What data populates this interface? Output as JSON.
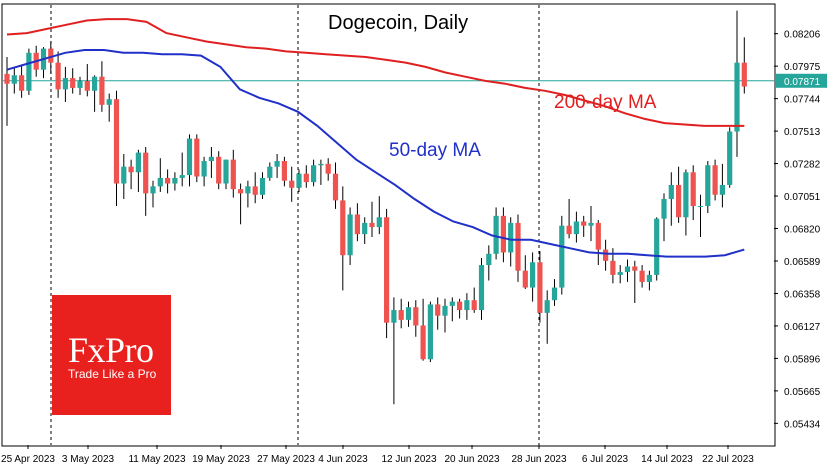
{
  "colors": {
    "background": "#ffffff",
    "axis": "#000000",
    "bull": "#26a69a",
    "bear": "#ef5350",
    "wick": "#000000",
    "ma200": "#e02020",
    "ma50": "#2030c8",
    "current_price_line": "#26a69a",
    "current_price_box": "#26a69a",
    "logo_bg": "#e8211e"
  },
  "logo": {
    "brand": "FxPro",
    "tagline": "Trade Like a Pro"
  },
  "chart_data": {
    "type": "candlestick",
    "title": "Dogecoin, Daily",
    "annotations": [
      {
        "text": "200-day MA",
        "series": "ma200"
      },
      {
        "text": "50-day MA",
        "series": "ma50"
      }
    ],
    "x_tick_labels": [
      "25 Apr 2023",
      "3 May 2023",
      "11 May 2023",
      "19 May 2023",
      "27 May 2023",
      "4 Jun 2023",
      "12 Jun 2023",
      "20 Jun 2023",
      "28 Jun 2023",
      "6 Jul 2023",
      "14 Jul 2023",
      "22 Jul 2023"
    ],
    "y_tick_labels": [
      "0.08206",
      "0.07975",
      "0.07744",
      "0.07513",
      "0.07282",
      "0.07051",
      "0.06820",
      "0.06589",
      "0.06358",
      "0.06127",
      "0.05896",
      "0.05665",
      "0.05434"
    ],
    "ylim": [
      0.0528,
      0.0841
    ],
    "current_price": "0.07871",
    "candles": [
      {
        "o": 0.0792,
        "h": 0.0804,
        "l": 0.0755,
        "c": 0.0785
      },
      {
        "o": 0.0785,
        "h": 0.0796,
        "l": 0.0778,
        "c": 0.0791
      },
      {
        "o": 0.0791,
        "h": 0.0798,
        "l": 0.0775,
        "c": 0.078
      },
      {
        "o": 0.078,
        "h": 0.081,
        "l": 0.0777,
        "c": 0.0807
      },
      {
        "o": 0.0807,
        "h": 0.0812,
        "l": 0.079,
        "c": 0.0795
      },
      {
        "o": 0.0795,
        "h": 0.0811,
        "l": 0.0789,
        "c": 0.081
      },
      {
        "o": 0.081,
        "h": 0.0815,
        "l": 0.0792,
        "c": 0.08
      },
      {
        "o": 0.08,
        "h": 0.0808,
        "l": 0.0775,
        "c": 0.0781
      },
      {
        "o": 0.0781,
        "h": 0.0797,
        "l": 0.0772,
        "c": 0.0789
      },
      {
        "o": 0.0789,
        "h": 0.0796,
        "l": 0.0778,
        "c": 0.0782
      },
      {
        "o": 0.0782,
        "h": 0.079,
        "l": 0.0777,
        "c": 0.0787
      },
      {
        "o": 0.0787,
        "h": 0.0799,
        "l": 0.0776,
        "c": 0.078
      },
      {
        "o": 0.078,
        "h": 0.0791,
        "l": 0.0765,
        "c": 0.079
      },
      {
        "o": 0.079,
        "h": 0.0801,
        "l": 0.0765,
        "c": 0.077
      },
      {
        "o": 0.077,
        "h": 0.0778,
        "l": 0.0758,
        "c": 0.0774
      },
      {
        "o": 0.0774,
        "h": 0.078,
        "l": 0.0698,
        "c": 0.0714
      },
      {
        "o": 0.0714,
        "h": 0.0735,
        "l": 0.0703,
        "c": 0.0726
      },
      {
        "o": 0.0726,
        "h": 0.0731,
        "l": 0.071,
        "c": 0.0722
      },
      {
        "o": 0.0722,
        "h": 0.0738,
        "l": 0.0708,
        "c": 0.0736
      },
      {
        "o": 0.0736,
        "h": 0.074,
        "l": 0.0691,
        "c": 0.0707
      },
      {
        "o": 0.0707,
        "h": 0.0716,
        "l": 0.0697,
        "c": 0.0712
      },
      {
        "o": 0.0712,
        "h": 0.0732,
        "l": 0.0708,
        "c": 0.0718
      },
      {
        "o": 0.0718,
        "h": 0.0724,
        "l": 0.0707,
        "c": 0.0714
      },
      {
        "o": 0.0714,
        "h": 0.0722,
        "l": 0.0709,
        "c": 0.0718
      },
      {
        "o": 0.0718,
        "h": 0.0736,
        "l": 0.0712,
        "c": 0.072
      },
      {
        "o": 0.072,
        "h": 0.0749,
        "l": 0.0712,
        "c": 0.0746
      },
      {
        "o": 0.0746,
        "h": 0.0749,
        "l": 0.0715,
        "c": 0.0719
      },
      {
        "o": 0.0719,
        "h": 0.0733,
        "l": 0.0712,
        "c": 0.073
      },
      {
        "o": 0.073,
        "h": 0.074,
        "l": 0.0718,
        "c": 0.0733
      },
      {
        "o": 0.0733,
        "h": 0.0737,
        "l": 0.071,
        "c": 0.0714
      },
      {
        "o": 0.0714,
        "h": 0.0731,
        "l": 0.071,
        "c": 0.0731
      },
      {
        "o": 0.0731,
        "h": 0.0738,
        "l": 0.0704,
        "c": 0.071
      },
      {
        "o": 0.071,
        "h": 0.0714,
        "l": 0.0685,
        "c": 0.0707
      },
      {
        "o": 0.0707,
        "h": 0.0716,
        "l": 0.0697,
        "c": 0.0712
      },
      {
        "o": 0.0712,
        "h": 0.0722,
        "l": 0.07,
        "c": 0.0706
      },
      {
        "o": 0.0706,
        "h": 0.0722,
        "l": 0.0703,
        "c": 0.0718
      },
      {
        "o": 0.0718,
        "h": 0.0729,
        "l": 0.0716,
        "c": 0.0726
      },
      {
        "o": 0.0726,
        "h": 0.0735,
        "l": 0.0718,
        "c": 0.073
      },
      {
        "o": 0.073,
        "h": 0.0733,
        "l": 0.0712,
        "c": 0.0716
      },
      {
        "o": 0.0716,
        "h": 0.0726,
        "l": 0.0701,
        "c": 0.0711
      },
      {
        "o": 0.0711,
        "h": 0.0724,
        "l": 0.0708,
        "c": 0.0721
      },
      {
        "o": 0.0721,
        "h": 0.0727,
        "l": 0.0711,
        "c": 0.0715
      },
      {
        "o": 0.0715,
        "h": 0.0731,
        "l": 0.0712,
        "c": 0.0727
      },
      {
        "o": 0.0727,
        "h": 0.0731,
        "l": 0.0713,
        "c": 0.0728
      },
      {
        "o": 0.0728,
        "h": 0.0732,
        "l": 0.0716,
        "c": 0.0721
      },
      {
        "o": 0.0721,
        "h": 0.0729,
        "l": 0.0696,
        "c": 0.0702
      },
      {
        "o": 0.0702,
        "h": 0.0712,
        "l": 0.0638,
        "c": 0.0663
      },
      {
        "o": 0.0663,
        "h": 0.0697,
        "l": 0.0656,
        "c": 0.0692
      },
      {
        "o": 0.0692,
        "h": 0.07,
        "l": 0.0673,
        "c": 0.0678
      },
      {
        "o": 0.0678,
        "h": 0.069,
        "l": 0.0671,
        "c": 0.0686
      },
      {
        "o": 0.0686,
        "h": 0.0701,
        "l": 0.0676,
        "c": 0.0683
      },
      {
        "o": 0.0683,
        "h": 0.0705,
        "l": 0.0678,
        "c": 0.069
      },
      {
        "o": 0.069,
        "h": 0.0696,
        "l": 0.0604,
        "c": 0.0615
      },
      {
        "o": 0.0615,
        "h": 0.0633,
        "l": 0.0557,
        "c": 0.0624
      },
      {
        "o": 0.0624,
        "h": 0.0632,
        "l": 0.0611,
        "c": 0.0617
      },
      {
        "o": 0.0617,
        "h": 0.063,
        "l": 0.0612,
        "c": 0.0626
      },
      {
        "o": 0.0626,
        "h": 0.0631,
        "l": 0.0605,
        "c": 0.0613
      },
      {
        "o": 0.0613,
        "h": 0.0632,
        "l": 0.0588,
        "c": 0.0589
      },
      {
        "o": 0.0589,
        "h": 0.063,
        "l": 0.0587,
        "c": 0.0628
      },
      {
        "o": 0.0628,
        "h": 0.0633,
        "l": 0.061,
        "c": 0.062
      },
      {
        "o": 0.062,
        "h": 0.0632,
        "l": 0.0608,
        "c": 0.0627
      },
      {
        "o": 0.0627,
        "h": 0.0633,
        "l": 0.0616,
        "c": 0.063
      },
      {
        "o": 0.063,
        "h": 0.0632,
        "l": 0.0618,
        "c": 0.0624
      },
      {
        "o": 0.0624,
        "h": 0.0636,
        "l": 0.0617,
        "c": 0.0631
      },
      {
        "o": 0.0631,
        "h": 0.064,
        "l": 0.0622,
        "c": 0.0624
      },
      {
        "o": 0.0624,
        "h": 0.0661,
        "l": 0.0617,
        "c": 0.0656
      },
      {
        "o": 0.0656,
        "h": 0.067,
        "l": 0.0645,
        "c": 0.0664
      },
      {
        "o": 0.0664,
        "h": 0.0697,
        "l": 0.066,
        "c": 0.0691
      },
      {
        "o": 0.0691,
        "h": 0.0697,
        "l": 0.0658,
        "c": 0.0665
      },
      {
        "o": 0.0665,
        "h": 0.069,
        "l": 0.0655,
        "c": 0.0686
      },
      {
        "o": 0.0686,
        "h": 0.0692,
        "l": 0.0644,
        "c": 0.0652
      },
      {
        "o": 0.0652,
        "h": 0.0663,
        "l": 0.0639,
        "c": 0.064
      },
      {
        "o": 0.064,
        "h": 0.0665,
        "l": 0.063,
        "c": 0.0658
      },
      {
        "o": 0.0658,
        "h": 0.0666,
        "l": 0.0615,
        "c": 0.0622
      },
      {
        "o": 0.0622,
        "h": 0.0638,
        "l": 0.06,
        "c": 0.0631
      },
      {
        "o": 0.0631,
        "h": 0.0646,
        "l": 0.0627,
        "c": 0.064
      },
      {
        "o": 0.064,
        "h": 0.0691,
        "l": 0.0635,
        "c": 0.0684
      },
      {
        "o": 0.0684,
        "h": 0.0703,
        "l": 0.0675,
        "c": 0.0678
      },
      {
        "o": 0.0678,
        "h": 0.0694,
        "l": 0.0672,
        "c": 0.0687
      },
      {
        "o": 0.0687,
        "h": 0.0691,
        "l": 0.0676,
        "c": 0.0684
      },
      {
        "o": 0.0684,
        "h": 0.0698,
        "l": 0.0673,
        "c": 0.0686
      },
      {
        "o": 0.0686,
        "h": 0.0688,
        "l": 0.0656,
        "c": 0.0667
      },
      {
        "o": 0.0667,
        "h": 0.0674,
        "l": 0.0652,
        "c": 0.0659
      },
      {
        "o": 0.0659,
        "h": 0.0668,
        "l": 0.0643,
        "c": 0.0649
      },
      {
        "o": 0.0649,
        "h": 0.0656,
        "l": 0.0643,
        "c": 0.0651
      },
      {
        "o": 0.0651,
        "h": 0.066,
        "l": 0.0644,
        "c": 0.0655
      },
      {
        "o": 0.0655,
        "h": 0.0659,
        "l": 0.0629,
        "c": 0.0652
      },
      {
        "o": 0.0652,
        "h": 0.0656,
        "l": 0.064,
        "c": 0.0644
      },
      {
        "o": 0.0644,
        "h": 0.0652,
        "l": 0.0638,
        "c": 0.0649
      },
      {
        "o": 0.0649,
        "h": 0.069,
        "l": 0.0645,
        "c": 0.0689
      },
      {
        "o": 0.0689,
        "h": 0.0707,
        "l": 0.0673,
        "c": 0.0703
      },
      {
        "o": 0.0703,
        "h": 0.0722,
        "l": 0.0684,
        "c": 0.0713
      },
      {
        "o": 0.0713,
        "h": 0.0726,
        "l": 0.0686,
        "c": 0.069
      },
      {
        "o": 0.069,
        "h": 0.0724,
        "l": 0.0677,
        "c": 0.0722
      },
      {
        "o": 0.0722,
        "h": 0.0727,
        "l": 0.0688,
        "c": 0.0698
      },
      {
        "o": 0.0698,
        "h": 0.0706,
        "l": 0.0676,
        "c": 0.0698
      },
      {
        "o": 0.0698,
        "h": 0.073,
        "l": 0.0693,
        "c": 0.0727
      },
      {
        "o": 0.0727,
        "h": 0.0731,
        "l": 0.0702,
        "c": 0.0706
      },
      {
        "o": 0.0706,
        "h": 0.0728,
        "l": 0.0697,
        "c": 0.0713
      },
      {
        "o": 0.0713,
        "h": 0.0754,
        "l": 0.0711,
        "c": 0.0751
      },
      {
        "o": 0.0751,
        "h": 0.0837,
        "l": 0.0733,
        "c": 0.08
      },
      {
        "o": 0.08,
        "h": 0.0818,
        "l": 0.0778,
        "c": 0.0783
      }
    ],
    "ma200": [
      0.082,
      0.0821,
      0.0824,
      0.0827,
      0.083,
      0.0831,
      0.0831,
      0.0829,
      0.0821,
      0.0818,
      0.0815,
      0.0813,
      0.0811,
      0.081,
      0.0808,
      0.0807,
      0.0806,
      0.0805,
      0.0804,
      0.0802,
      0.08,
      0.0797,
      0.0793,
      0.079,
      0.0787,
      0.0785,
      0.0782,
      0.078,
      0.0777,
      0.0773,
      0.0769,
      0.0764,
      0.076,
      0.0757,
      0.0756,
      0.0755,
      0.0755,
      0.0755
    ],
    "ma50": [
      0.0795,
      0.0799,
      0.0803,
      0.0807,
      0.0809,
      0.0809,
      0.0807,
      0.0807,
      0.0806,
      0.0806,
      0.0805,
      0.0797,
      0.0781,
      0.0775,
      0.0771,
      0.0765,
      0.0755,
      0.0743,
      0.0731,
      0.0722,
      0.0713,
      0.0703,
      0.0694,
      0.0687,
      0.0683,
      0.0677,
      0.0674,
      0.0674,
      0.0671,
      0.0668,
      0.0665,
      0.0664,
      0.0664,
      0.0663,
      0.0662,
      0.0662,
      0.0662,
      0.0663,
      0.0667
    ]
  }
}
